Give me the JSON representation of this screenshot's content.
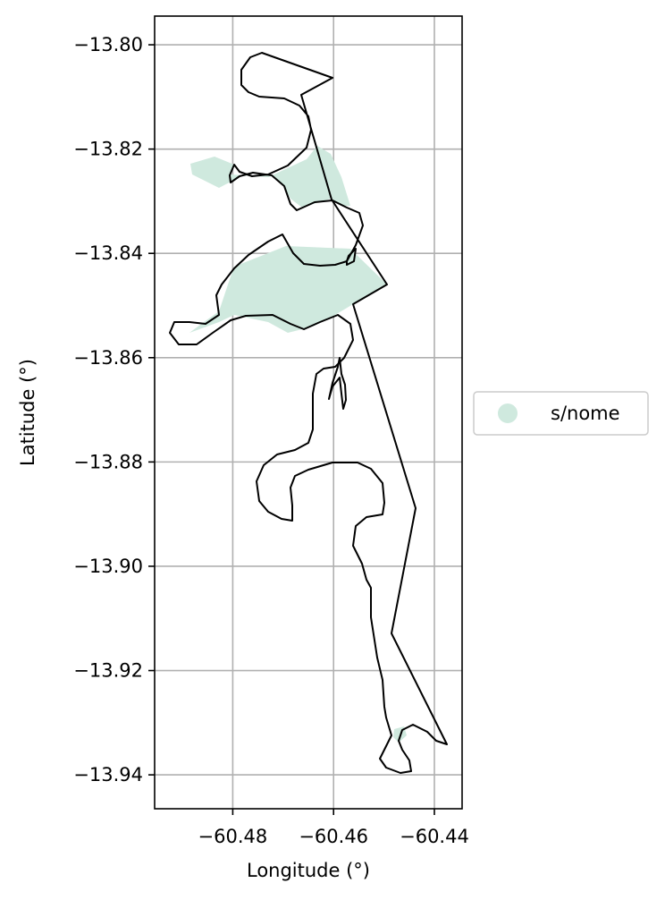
{
  "map": {
    "xlabel": "Longitude (°)",
    "ylabel": "Latitude (°)",
    "xlim": [
      -60.4955,
      -60.4345
    ],
    "ylim": [
      -13.9465,
      -13.7945
    ],
    "x_ticks": [
      {
        "value": -60.48,
        "label": "−60.48"
      },
      {
        "value": -60.46,
        "label": "−60.46"
      },
      {
        "value": -60.44,
        "label": "−60.44"
      }
    ],
    "y_ticks": [
      {
        "value": -13.8,
        "label": "−13.80"
      },
      {
        "value": -13.82,
        "label": "−13.82"
      },
      {
        "value": -13.84,
        "label": "−13.84"
      },
      {
        "value": -13.86,
        "label": "−13.86"
      },
      {
        "value": -13.88,
        "label": "−13.88"
      },
      {
        "value": -13.9,
        "label": "−13.90"
      },
      {
        "value": -13.92,
        "label": "−13.92"
      },
      {
        "value": -13.94,
        "label": "−13.94"
      }
    ],
    "grid": true,
    "legend": {
      "placement": "right-center",
      "entries": [
        {
          "label": "s/nome",
          "color": "#cfe9de"
        }
      ]
    },
    "fill_color": "#cfe9de",
    "outline_color": "#000000"
  }
}
